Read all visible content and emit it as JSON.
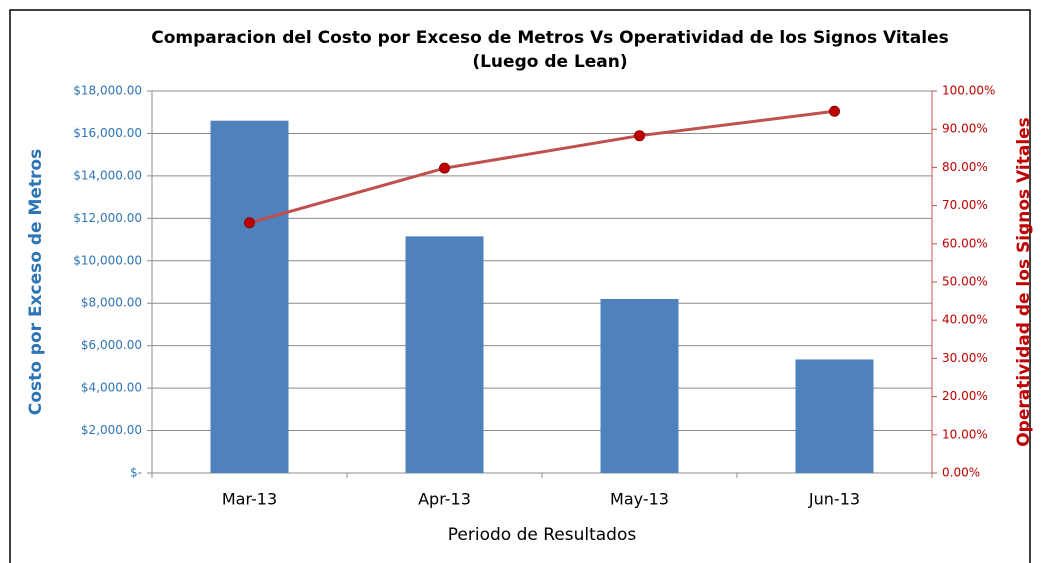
{
  "chart_data": {
    "type": "bar_line",
    "title": "Comparacion del Costo por Exceso de Metros Vs Operatividad de los Signos Vitales",
    "subtitle": "(Luego de Lean)",
    "x_label": "Periodo de Resultados",
    "y_label": "Costo por Exceso de Metros",
    "y2_label": "Operatividad de los Signos Vitales",
    "categories": [
      "Mar-13",
      "Apr-13",
      "May-13",
      "Jun-13"
    ],
    "series": [
      {
        "type": "bar",
        "color": "#4f81bd",
        "values": [
          16600,
          11150,
          8200,
          5350
        ]
      },
      {
        "type": "line",
        "color": "#c0504d",
        "marker_color": "#c00000",
        "axis": "y2",
        "values": [
          65.5,
          79.8,
          88.3,
          94.7
        ]
      }
    ],
    "ylim": [
      0,
      18000
    ],
    "yticks": [
      {
        "value": 0,
        "label": "$-"
      },
      {
        "value": 2000,
        "label": "$2,000.00"
      },
      {
        "value": 4000,
        "label": "$4,000.00"
      },
      {
        "value": 6000,
        "label": "$6,000.00"
      },
      {
        "value": 8000,
        "label": "$8,000.00"
      },
      {
        "value": 10000,
        "label": "$10,000.00"
      },
      {
        "value": 12000,
        "label": "$12,000.00"
      },
      {
        "value": 14000,
        "label": "$14,000.00"
      },
      {
        "value": 16000,
        "label": "$16,000.00"
      },
      {
        "value": 18000,
        "label": "$18,000.00"
      }
    ],
    "y2lim": [
      0,
      100
    ],
    "y2ticks": [
      {
        "value": 0,
        "label": "0.00%"
      },
      {
        "value": 10,
        "label": "10.00%"
      },
      {
        "value": 20,
        "label": "20.00%"
      },
      {
        "value": 30,
        "label": "30.00%"
      },
      {
        "value": 40,
        "label": "40.00%"
      },
      {
        "value": 50,
        "label": "50.00%"
      },
      {
        "value": 60,
        "label": "60.00%"
      },
      {
        "value": 70,
        "label": "70.00%"
      },
      {
        "value": 80,
        "label": "80.00%"
      },
      {
        "value": 90,
        "label": "90.00%"
      },
      {
        "value": 100,
        "label": "100.00%"
      }
    ],
    "grid": true
  }
}
